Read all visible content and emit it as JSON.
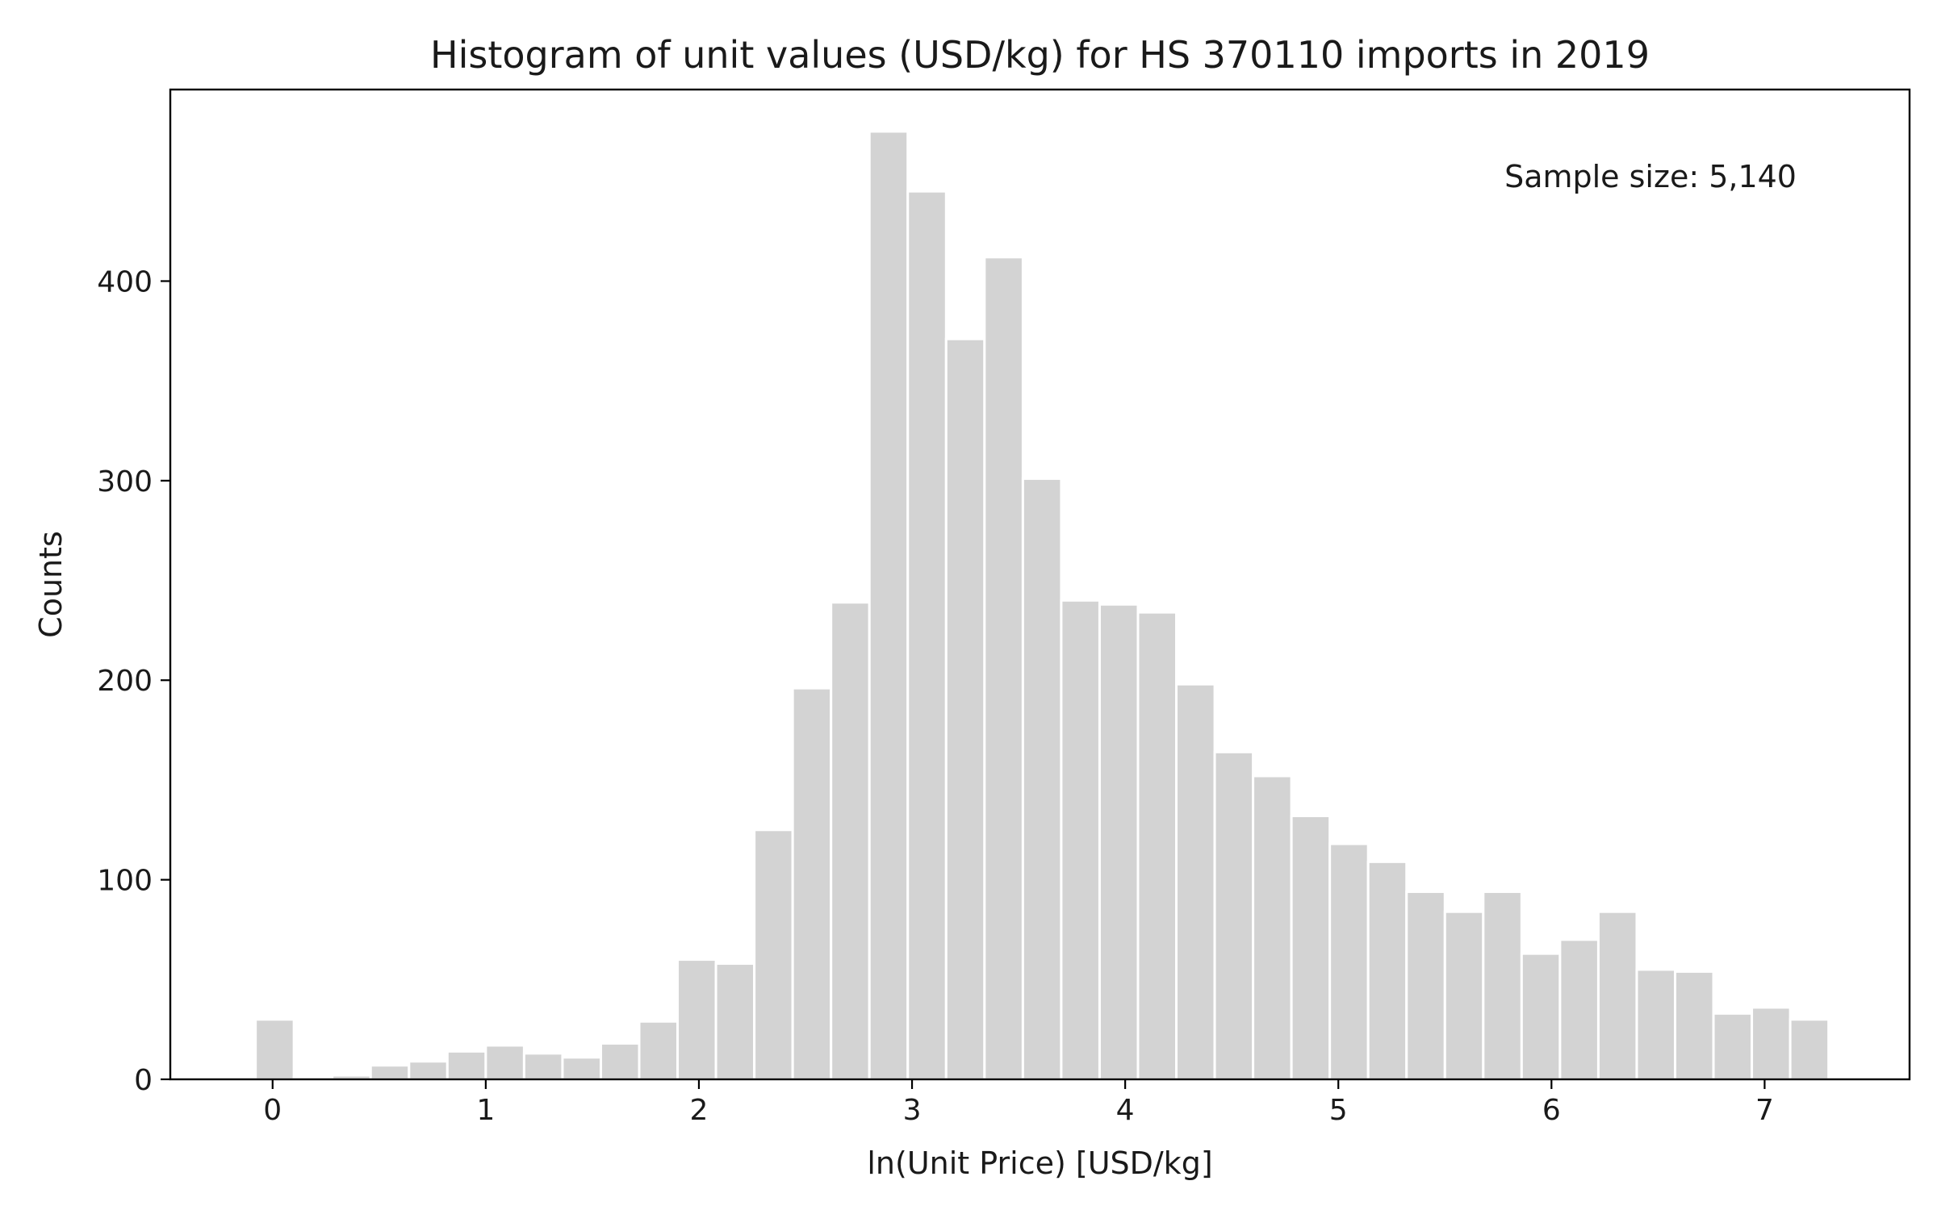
{
  "chart_data": {
    "type": "bar",
    "title": "Histogram of unit values (USD/kg) for HS 370110 imports in 2019",
    "xlabel": "ln(Unit Price) [USD/kg]",
    "ylabel": "Counts",
    "annotation": "Sample size: 5,140",
    "xlim": [
      -0.48,
      7.68
    ],
    "ylim": [
      0,
      496
    ],
    "xticks": [
      0,
      1,
      2,
      3,
      4,
      5,
      6,
      7
    ],
    "yticks": [
      0,
      100,
      200,
      300,
      400
    ],
    "grid": false,
    "bin_start": -0.08,
    "bin_width": 0.18,
    "bar_color": "#d3d3d3",
    "bar_edge_color": "#ffffff",
    "values": [
      30,
      1,
      2,
      7,
      9,
      14,
      17,
      13,
      11,
      18,
      29,
      60,
      58,
      125,
      196,
      239,
      475,
      445,
      371,
      412,
      301,
      240,
      238,
      234,
      198,
      164,
      152,
      132,
      118,
      109,
      94,
      84,
      94,
      63,
      70,
      84,
      55,
      54,
      33,
      36,
      30
    ]
  }
}
